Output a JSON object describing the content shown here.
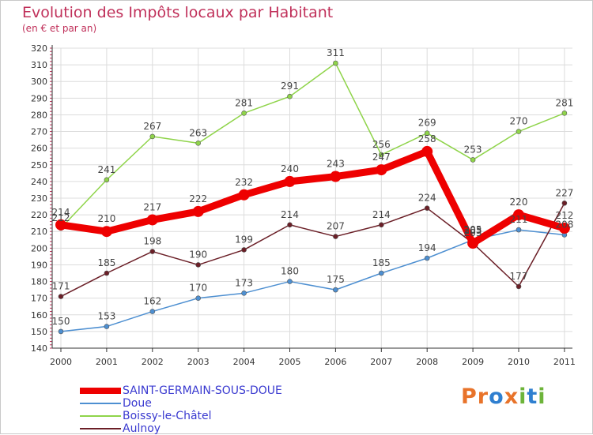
{
  "header": {
    "title": "Evolution des Impôts locaux par Habitant",
    "subtitle": "(en € et par an)"
  },
  "logo": {
    "text": "Proxiti",
    "letter_colors": [
      "#e8732a",
      "#e8732a",
      "#2f7fd0",
      "#e8732a",
      "#6db43a",
      "#2f7fd0",
      "#6db43a"
    ]
  },
  "colors": {
    "title": "#c0305a",
    "legend_text": "#3a3ad0",
    "grid": "#dcdcdc",
    "axis": "#333333"
  },
  "chart_data": {
    "type": "line",
    "x": [
      2000,
      2001,
      2002,
      2003,
      2004,
      2005,
      2006,
      2007,
      2008,
      2009,
      2010,
      2011
    ],
    "ylim": [
      140,
      320
    ],
    "yticks": [
      140,
      150,
      160,
      170,
      180,
      190,
      200,
      210,
      220,
      230,
      240,
      250,
      260,
      270,
      280,
      290,
      300,
      310,
      320
    ],
    "grid": true,
    "legend_position": "bottom-left",
    "series": [
      {
        "name": "Doue",
        "color": "#4d8fd1",
        "values": [
          150,
          153,
          162,
          170,
          173,
          180,
          175,
          185,
          194,
          205,
          211,
          208
        ]
      },
      {
        "name": "Boissy-le-Châtel",
        "color": "#8fd44a",
        "values": [
          212,
          241,
          267,
          263,
          281,
          291,
          311,
          256,
          269,
          253,
          270,
          281
        ]
      },
      {
        "name": "Aulnoy",
        "color": "#6b1f27",
        "values": [
          171,
          185,
          198,
          190,
          199,
          214,
          207,
          214,
          224,
          203,
          177,
          227
        ]
      },
      {
        "name": "SAINT-GERMAIN-SOUS-DOUE",
        "color": "#ee0000",
        "values": [
          214,
          210,
          217,
          222,
          232,
          240,
          243,
          247,
          258,
          203,
          220,
          212
        ]
      }
    ],
    "data_labels": [
      {
        "series": "Doue",
        "labels": [
          "150",
          "153",
          "162",
          "170",
          "173",
          "180",
          "175",
          "185",
          "194",
          "205",
          "211",
          "208"
        ]
      },
      {
        "series": "Boissy-le-Châtel",
        "labels": [
          "212",
          "241",
          "267",
          "263",
          "281",
          "291",
          "311",
          "256",
          "269",
          "253",
          "270",
          "281"
        ]
      },
      {
        "series": "Aulnoy",
        "labels": [
          "171",
          "185",
          "198",
          "190",
          "199",
          "214",
          "207",
          "214",
          "224",
          "203",
          "177",
          "227"
        ]
      },
      {
        "series": "SAINT-GERMAIN-SOUS-DOUE",
        "labels": [
          "214",
          "210",
          "217",
          "222",
          "232",
          "240",
          "243",
          "247",
          "258",
          "203",
          "220",
          "212"
        ]
      }
    ]
  }
}
